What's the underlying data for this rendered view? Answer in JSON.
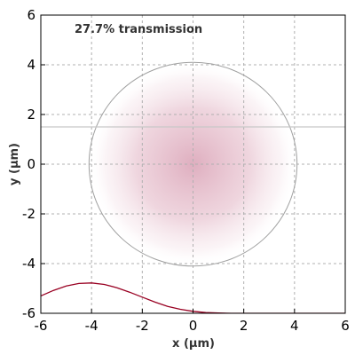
{
  "chart_data": {
    "type": "heatmap",
    "annotation": "27.7% transmission",
    "xlabel": "x (µm)",
    "ylabel": "y (µm)",
    "xlim": [
      -6,
      6
    ],
    "ylim": [
      -6,
      6
    ],
    "xticks": [
      "-6",
      "-4",
      "-2",
      "0",
      "2",
      "4",
      "6"
    ],
    "yticks": [
      "6",
      "4",
      "2",
      "0",
      "-2",
      "-4",
      "-6"
    ],
    "grid": true,
    "beam": {
      "center": [
        0,
        0
      ],
      "radius": 4.1,
      "color": "#d9a0b4"
    },
    "aperture_line_y": 1.5,
    "profile_curve": {
      "x": [
        -6,
        -5.5,
        -5,
        -4.5,
        -4,
        -3.5,
        -3,
        -2.5,
        -2,
        -1.5,
        -1,
        -0.5,
        0,
        0.5,
        1,
        1.5,
        2,
        3,
        4,
        5,
        6
      ],
      "y": [
        -5.3,
        -5.08,
        -4.9,
        -4.8,
        -4.78,
        -4.84,
        -4.97,
        -5.15,
        -5.35,
        -5.55,
        -5.72,
        -5.84,
        -5.92,
        -5.97,
        -5.99,
        -6.0,
        -6.0,
        -6.0,
        -6.0,
        -6.0,
        -6.0
      ]
    },
    "colors": {
      "grid": "#b0b0b0",
      "circle": "#a0a0a0",
      "line": "#c8c8c8",
      "curve": "#990022"
    }
  }
}
